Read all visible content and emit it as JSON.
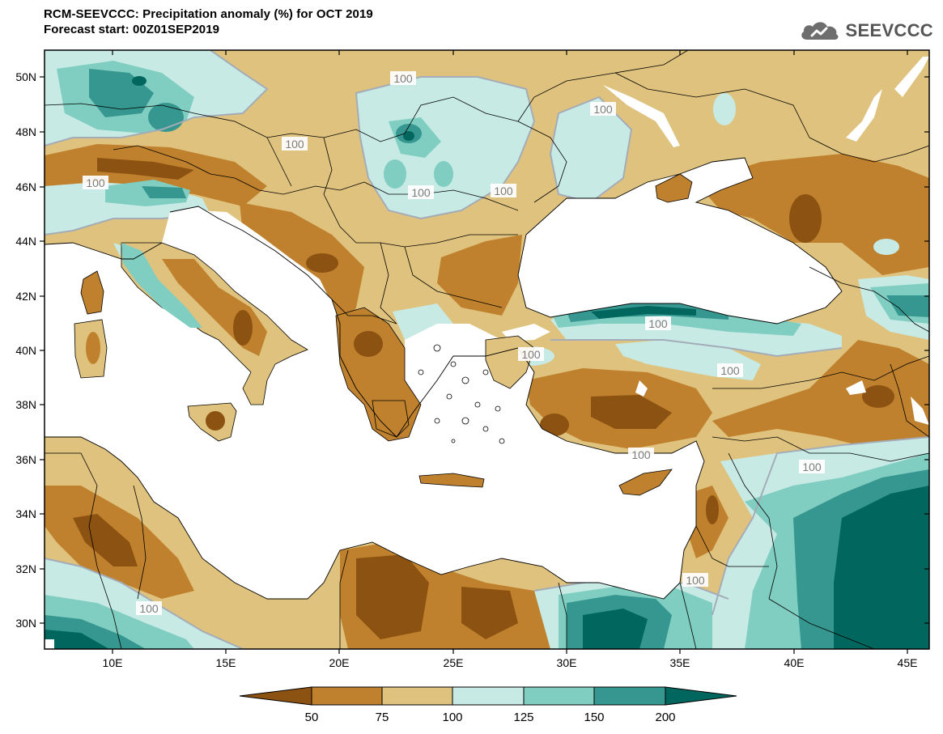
{
  "header": {
    "title_line1": "RCM-SEEVCCC: Precipitation anomaly (%) for OCT 2019",
    "title_line2": "Forecast start: 00Z01SEP2019",
    "brand_name": "SEEVCCC",
    "brand_icon": "cloud-logo-icon"
  },
  "map": {
    "lat_labels": [
      "50N",
      "48N",
      "46N",
      "44N",
      "42N",
      "40N",
      "38N",
      "36N",
      "34N",
      "32N",
      "30N"
    ],
    "lon_labels": [
      "10E",
      "15E",
      "20E",
      "25E",
      "30E",
      "35E",
      "40E",
      "45E"
    ],
    "contour_labels": [
      "100",
      "100",
      "100",
      "100",
      "100",
      "100",
      "100",
      "100",
      "100",
      "100",
      "100",
      "100",
      "100"
    ],
    "ocean_color": "#ffffff",
    "border_color": "#000000",
    "contour_line_color": "#a4acb8"
  },
  "legend": {
    "ticks": [
      "50",
      "75",
      "100",
      "125",
      "150",
      "200"
    ],
    "colors": [
      "#8c5211",
      "#bf812d",
      "#dfc27d",
      "#c7eae5",
      "#80cdc1",
      "#35978f",
      "#01665e"
    ]
  }
}
